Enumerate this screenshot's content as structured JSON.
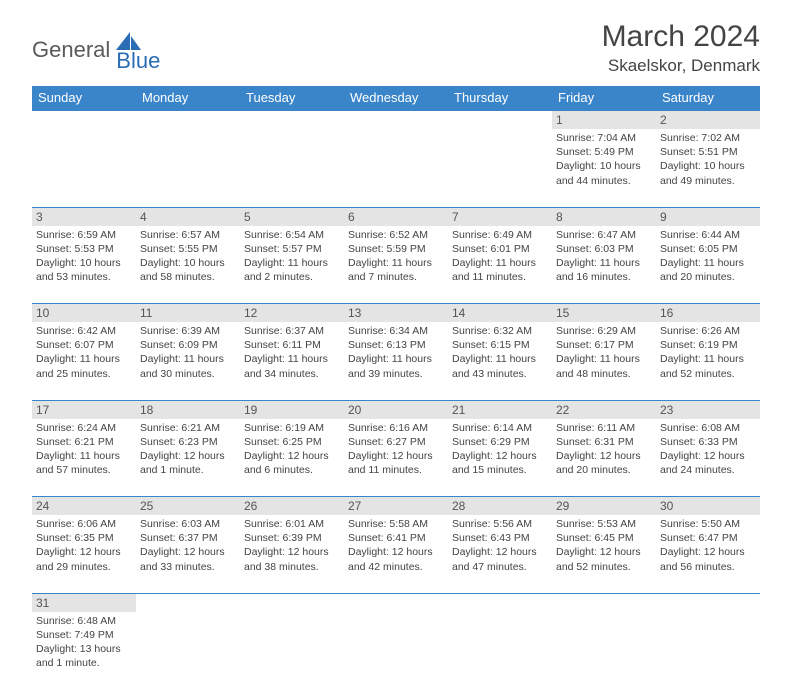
{
  "logo": {
    "part1": "General",
    "part2": "Blue"
  },
  "title": "March 2024",
  "location": "Skaelskor, Denmark",
  "colors": {
    "header_bg": "#3a85c9",
    "header_text": "#ffffff",
    "daynum_bg": "#e4e4e4",
    "border": "#3a85c9",
    "body_text": "#444444",
    "logo_gray": "#5a5a5a",
    "logo_blue": "#2a6db5"
  },
  "fonts": {
    "title_size": 30,
    "location_size": 17,
    "header_size": 13,
    "daynum_size": 12,
    "detail_size": 10.5
  },
  "day_headers": [
    "Sunday",
    "Monday",
    "Tuesday",
    "Wednesday",
    "Thursday",
    "Friday",
    "Saturday"
  ],
  "weeks": [
    [
      null,
      null,
      null,
      null,
      null,
      {
        "n": "1",
        "sr": "Sunrise: 7:04 AM",
        "ss": "Sunset: 5:49 PM",
        "d1": "Daylight: 10 hours",
        "d2": "and 44 minutes."
      },
      {
        "n": "2",
        "sr": "Sunrise: 7:02 AM",
        "ss": "Sunset: 5:51 PM",
        "d1": "Daylight: 10 hours",
        "d2": "and 49 minutes."
      }
    ],
    [
      {
        "n": "3",
        "sr": "Sunrise: 6:59 AM",
        "ss": "Sunset: 5:53 PM",
        "d1": "Daylight: 10 hours",
        "d2": "and 53 minutes."
      },
      {
        "n": "4",
        "sr": "Sunrise: 6:57 AM",
        "ss": "Sunset: 5:55 PM",
        "d1": "Daylight: 10 hours",
        "d2": "and 58 minutes."
      },
      {
        "n": "5",
        "sr": "Sunrise: 6:54 AM",
        "ss": "Sunset: 5:57 PM",
        "d1": "Daylight: 11 hours",
        "d2": "and 2 minutes."
      },
      {
        "n": "6",
        "sr": "Sunrise: 6:52 AM",
        "ss": "Sunset: 5:59 PM",
        "d1": "Daylight: 11 hours",
        "d2": "and 7 minutes."
      },
      {
        "n": "7",
        "sr": "Sunrise: 6:49 AM",
        "ss": "Sunset: 6:01 PM",
        "d1": "Daylight: 11 hours",
        "d2": "and 11 minutes."
      },
      {
        "n": "8",
        "sr": "Sunrise: 6:47 AM",
        "ss": "Sunset: 6:03 PM",
        "d1": "Daylight: 11 hours",
        "d2": "and 16 minutes."
      },
      {
        "n": "9",
        "sr": "Sunrise: 6:44 AM",
        "ss": "Sunset: 6:05 PM",
        "d1": "Daylight: 11 hours",
        "d2": "and 20 minutes."
      }
    ],
    [
      {
        "n": "10",
        "sr": "Sunrise: 6:42 AM",
        "ss": "Sunset: 6:07 PM",
        "d1": "Daylight: 11 hours",
        "d2": "and 25 minutes."
      },
      {
        "n": "11",
        "sr": "Sunrise: 6:39 AM",
        "ss": "Sunset: 6:09 PM",
        "d1": "Daylight: 11 hours",
        "d2": "and 30 minutes."
      },
      {
        "n": "12",
        "sr": "Sunrise: 6:37 AM",
        "ss": "Sunset: 6:11 PM",
        "d1": "Daylight: 11 hours",
        "d2": "and 34 minutes."
      },
      {
        "n": "13",
        "sr": "Sunrise: 6:34 AM",
        "ss": "Sunset: 6:13 PM",
        "d1": "Daylight: 11 hours",
        "d2": "and 39 minutes."
      },
      {
        "n": "14",
        "sr": "Sunrise: 6:32 AM",
        "ss": "Sunset: 6:15 PM",
        "d1": "Daylight: 11 hours",
        "d2": "and 43 minutes."
      },
      {
        "n": "15",
        "sr": "Sunrise: 6:29 AM",
        "ss": "Sunset: 6:17 PM",
        "d1": "Daylight: 11 hours",
        "d2": "and 48 minutes."
      },
      {
        "n": "16",
        "sr": "Sunrise: 6:26 AM",
        "ss": "Sunset: 6:19 PM",
        "d1": "Daylight: 11 hours",
        "d2": "and 52 minutes."
      }
    ],
    [
      {
        "n": "17",
        "sr": "Sunrise: 6:24 AM",
        "ss": "Sunset: 6:21 PM",
        "d1": "Daylight: 11 hours",
        "d2": "and 57 minutes."
      },
      {
        "n": "18",
        "sr": "Sunrise: 6:21 AM",
        "ss": "Sunset: 6:23 PM",
        "d1": "Daylight: 12 hours",
        "d2": "and 1 minute."
      },
      {
        "n": "19",
        "sr": "Sunrise: 6:19 AM",
        "ss": "Sunset: 6:25 PM",
        "d1": "Daylight: 12 hours",
        "d2": "and 6 minutes."
      },
      {
        "n": "20",
        "sr": "Sunrise: 6:16 AM",
        "ss": "Sunset: 6:27 PM",
        "d1": "Daylight: 12 hours",
        "d2": "and 11 minutes."
      },
      {
        "n": "21",
        "sr": "Sunrise: 6:14 AM",
        "ss": "Sunset: 6:29 PM",
        "d1": "Daylight: 12 hours",
        "d2": "and 15 minutes."
      },
      {
        "n": "22",
        "sr": "Sunrise: 6:11 AM",
        "ss": "Sunset: 6:31 PM",
        "d1": "Daylight: 12 hours",
        "d2": "and 20 minutes."
      },
      {
        "n": "23",
        "sr": "Sunrise: 6:08 AM",
        "ss": "Sunset: 6:33 PM",
        "d1": "Daylight: 12 hours",
        "d2": "and 24 minutes."
      }
    ],
    [
      {
        "n": "24",
        "sr": "Sunrise: 6:06 AM",
        "ss": "Sunset: 6:35 PM",
        "d1": "Daylight: 12 hours",
        "d2": "and 29 minutes."
      },
      {
        "n": "25",
        "sr": "Sunrise: 6:03 AM",
        "ss": "Sunset: 6:37 PM",
        "d1": "Daylight: 12 hours",
        "d2": "and 33 minutes."
      },
      {
        "n": "26",
        "sr": "Sunrise: 6:01 AM",
        "ss": "Sunset: 6:39 PM",
        "d1": "Daylight: 12 hours",
        "d2": "and 38 minutes."
      },
      {
        "n": "27",
        "sr": "Sunrise: 5:58 AM",
        "ss": "Sunset: 6:41 PM",
        "d1": "Daylight: 12 hours",
        "d2": "and 42 minutes."
      },
      {
        "n": "28",
        "sr": "Sunrise: 5:56 AM",
        "ss": "Sunset: 6:43 PM",
        "d1": "Daylight: 12 hours",
        "d2": "and 47 minutes."
      },
      {
        "n": "29",
        "sr": "Sunrise: 5:53 AM",
        "ss": "Sunset: 6:45 PM",
        "d1": "Daylight: 12 hours",
        "d2": "and 52 minutes."
      },
      {
        "n": "30",
        "sr": "Sunrise: 5:50 AM",
        "ss": "Sunset: 6:47 PM",
        "d1": "Daylight: 12 hours",
        "d2": "and 56 minutes."
      }
    ],
    [
      {
        "n": "31",
        "sr": "Sunrise: 6:48 AM",
        "ss": "Sunset: 7:49 PM",
        "d1": "Daylight: 13 hours",
        "d2": "and 1 minute."
      },
      null,
      null,
      null,
      null,
      null,
      null
    ]
  ]
}
